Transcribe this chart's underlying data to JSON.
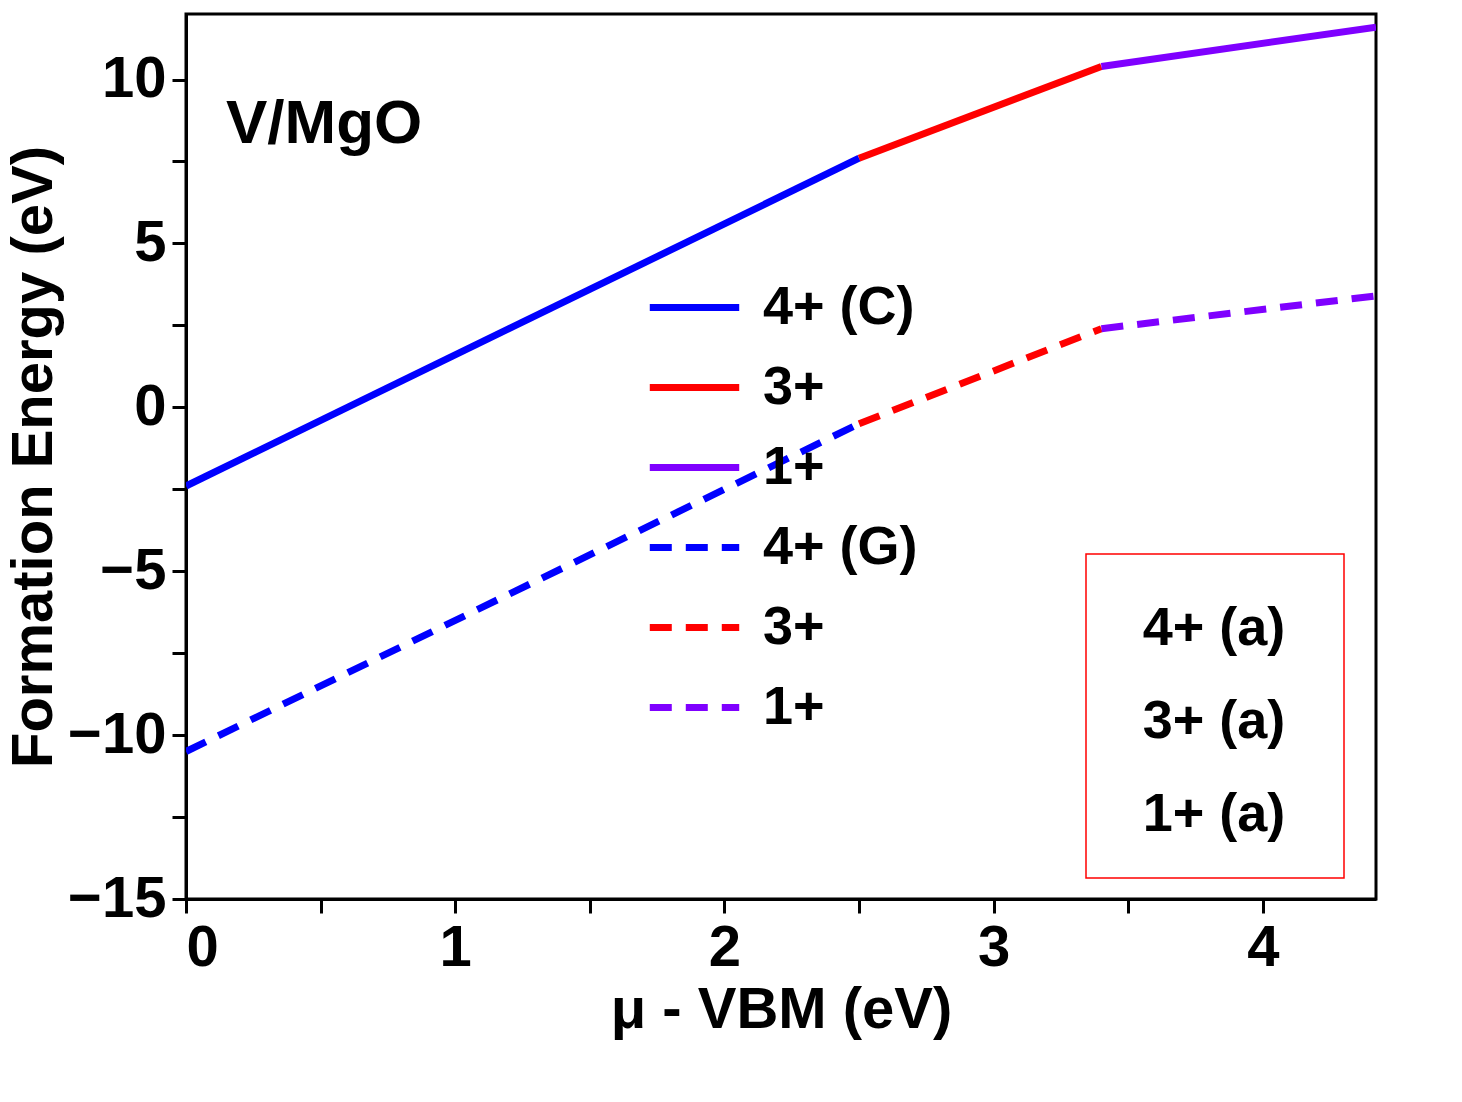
{
  "chart_data": {
    "type": "line",
    "xlabel": "μ - VBM (eV)",
    "ylabel": "Formation Energy (eV)",
    "xlim": [
      0,
      4.42
    ],
    "ylim": [
      -15,
      12
    ],
    "xticks": [
      0,
      {
        "value": 0.5,
        "label": null
      },
      1,
      {
        "value": 1.5,
        "label": null
      },
      2,
      {
        "value": 2.5,
        "label": null
      },
      3,
      {
        "value": 3.5,
        "label": null
      },
      4
    ],
    "yticks": [
      -15,
      {
        "value": -12.5,
        "label": null
      },
      -10,
      {
        "value": -7.5,
        "label": null
      },
      -5,
      {
        "value": -2.5,
        "label": null
      },
      0,
      {
        "value": 2.5,
        "label": null
      },
      5,
      {
        "value": 7.5,
        "label": null
      },
      10
    ],
    "grid": false,
    "legend": "right",
    "marker": "none",
    "series": [
      {
        "name": "4+ (C)",
        "color": "#0000ff",
        "line_style": "solid",
        "x": [
          0,
          2.5
        ],
        "values": [
          -2.4,
          7.6
        ]
      },
      {
        "name": "3+",
        "color": "#ff0000",
        "line_style": "solid",
        "x": [
          2.5,
          3.4
        ],
        "values": [
          7.6,
          10.4
        ]
      },
      {
        "name": "1+",
        "color": "#7f00ff",
        "line_style": "solid",
        "x": [
          3.4,
          4.42
        ],
        "values": [
          10.4,
          11.6
        ]
      },
      {
        "name": "4+ (G)",
        "color": "#0000ff",
        "line_style": "dashed",
        "x": [
          0,
          2.5
        ],
        "values": [
          -10.5,
          -0.5
        ]
      },
      {
        "name": "3+",
        "color": "#ff0000",
        "line_style": "dashed",
        "x": [
          2.5,
          3.4
        ],
        "values": [
          -0.5,
          2.4
        ]
      },
      {
        "name": "1+",
        "color": "#7f00ff",
        "line_style": "dashed",
        "x": [
          3.4,
          4.42
        ],
        "values": [
          2.4,
          3.4
        ]
      }
    ],
    "annotations": [
      "V/MgO",
      "4+ (a)",
      "3+ (a)",
      "1+ (a)"
    ]
  }
}
